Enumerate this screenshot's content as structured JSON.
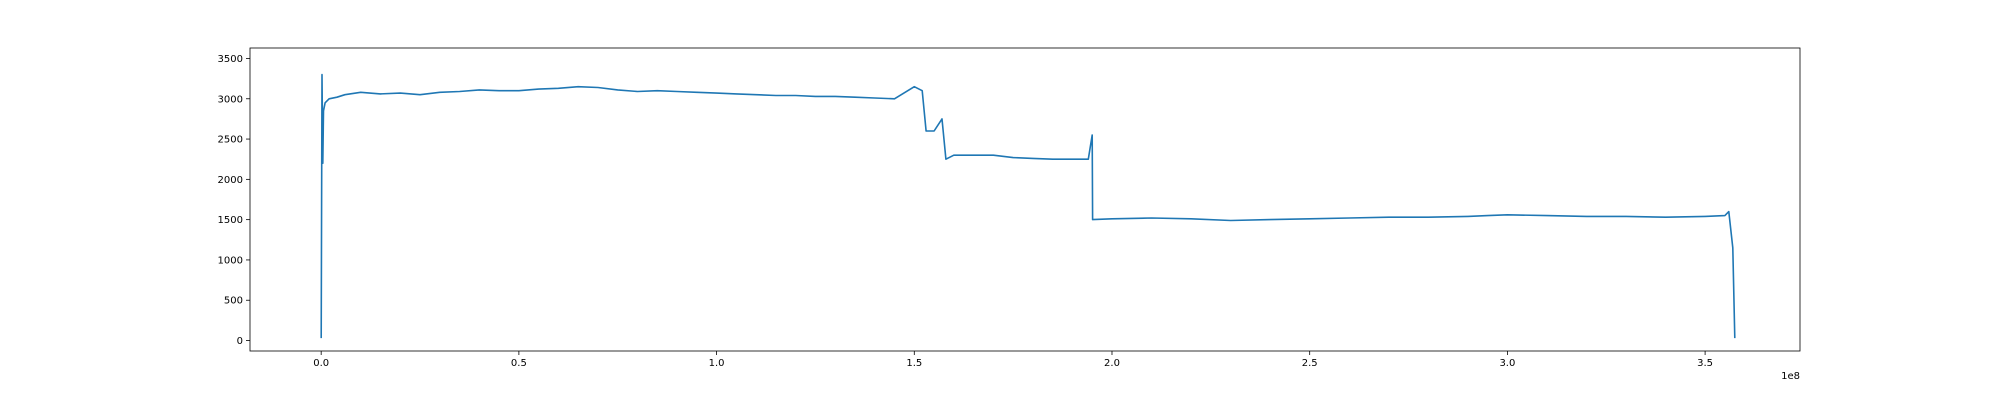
{
  "chart_data": {
    "type": "line",
    "title": "",
    "xlabel": "",
    "ylabel": "",
    "x_offset_label": "1e8",
    "xlim": [
      -0.18,
      3.74
    ],
    "ylim": [
      -130,
      3630
    ],
    "x_ticks": [
      0.0,
      0.5,
      1.0,
      1.5,
      2.0,
      2.5,
      3.0,
      3.5
    ],
    "x_tick_labels": [
      "0.0",
      "0.5",
      "1.0",
      "1.5",
      "2.0",
      "2.5",
      "3.0",
      "3.5"
    ],
    "y_ticks": [
      0,
      500,
      1000,
      1500,
      2000,
      2500,
      3000,
      3500
    ],
    "y_tick_labels": [
      "0",
      "500",
      "1000",
      "1500",
      "2000",
      "2500",
      "3000",
      "3500"
    ],
    "grid": false,
    "legend": "none",
    "series": [
      {
        "color": "#1f77b4",
        "x": [
          0.0,
          0.001,
          0.002,
          0.004,
          0.006,
          0.01,
          0.02,
          0.04,
          0.06,
          0.1,
          0.15,
          0.2,
          0.25,
          0.3,
          0.35,
          0.4,
          0.45,
          0.5,
          0.55,
          0.6,
          0.65,
          0.7,
          0.75,
          0.8,
          0.85,
          0.9,
          0.95,
          1.0,
          1.05,
          1.1,
          1.15,
          1.2,
          1.25,
          1.3,
          1.35,
          1.4,
          1.45,
          1.5,
          1.52,
          1.53,
          1.55,
          1.57,
          1.58,
          1.6,
          1.65,
          1.7,
          1.75,
          1.8,
          1.85,
          1.9,
          1.94,
          1.95,
          1.951,
          2.0,
          2.1,
          2.2,
          2.3,
          2.4,
          2.5,
          2.6,
          2.7,
          2.8,
          2.9,
          2.95,
          3.0,
          3.1,
          3.2,
          3.3,
          3.4,
          3.5,
          3.55,
          3.56,
          3.57,
          3.575
        ],
        "values": [
          30,
          1700,
          3300,
          2200,
          2850,
          2950,
          3000,
          3020,
          3050,
          3080,
          3060,
          3070,
          3050,
          3080,
          3090,
          3110,
          3100,
          3100,
          3120,
          3130,
          3150,
          3140,
          3110,
          3090,
          3100,
          3090,
          3080,
          3070,
          3060,
          3050,
          3040,
          3040,
          3030,
          3030,
          3020,
          3010,
          3000,
          3150,
          3100,
          2600,
          2600,
          2750,
          2250,
          2300,
          2300,
          2300,
          2270,
          2260,
          2250,
          2250,
          2250,
          2550,
          1500,
          1510,
          1520,
          1510,
          1490,
          1500,
          1510,
          1520,
          1530,
          1530,
          1540,
          1550,
          1560,
          1550,
          1540,
          1540,
          1530,
          1540,
          1550,
          1600,
          1150,
          30
        ]
      }
    ]
  }
}
